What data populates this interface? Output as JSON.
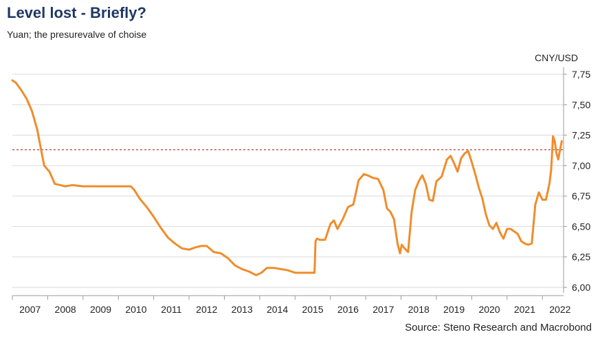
{
  "header": {
    "title": "Level lost - Briefly?",
    "subtitle": "Yuan; the presurevalve of choise",
    "unit": "CNY/USD"
  },
  "footer": {
    "source": "Source: Steno Research and Macrobond"
  },
  "colors": {
    "series": "#f08c2a",
    "reference": "#b22222",
    "grid": "#d9d9d9",
    "axis": "#999999"
  },
  "chart_data": {
    "type": "line",
    "title": "Level lost - Briefly?",
    "subtitle": "Yuan; the presurevalve of choise",
    "ylabel": "CNY/USD",
    "xlim": [
      2007.0,
      2022.6
    ],
    "ylim": [
      6.0,
      7.75
    ],
    "y_ticks": [
      "7,75",
      "7,50",
      "7,25",
      "7,00",
      "6,75",
      "6,50",
      "6,25",
      "6,00"
    ],
    "y_tick_values": [
      7.75,
      7.5,
      7.25,
      7.0,
      6.75,
      6.5,
      6.25,
      6.0
    ],
    "x_ticks": [
      "2007",
      "2008",
      "2009",
      "2010",
      "2011",
      "2012",
      "2013",
      "2014",
      "2015",
      "2016",
      "2017",
      "2018",
      "2019",
      "2020",
      "2021",
      "2022"
    ],
    "x_tick_values": [
      2007,
      2008,
      2009,
      2010,
      2011,
      2012,
      2013,
      2014,
      2015,
      2016,
      2017,
      2018,
      2019,
      2020,
      2021,
      2022
    ],
    "grid": true,
    "reference_line": 7.13,
    "series": [
      {
        "name": "",
        "x": [
          2007.0,
          2007.1,
          2007.25,
          2007.4,
          2007.55,
          2007.7,
          2007.8,
          2007.9,
          2008.05,
          2008.2,
          2008.35,
          2008.5,
          2008.7,
          2009.0,
          2009.3,
          2009.6,
          2009.9,
          2010.2,
          2010.35,
          2010.45,
          2010.6,
          2010.8,
          2011.0,
          2011.2,
          2011.4,
          2011.6,
          2011.8,
          2012.0,
          2012.2,
          2012.35,
          2012.5,
          2012.7,
          2012.9,
          2013.1,
          2013.3,
          2013.5,
          2013.7,
          2013.9,
          2014.05,
          2014.2,
          2014.4,
          2014.6,
          2014.8,
          2015.0,
          2015.2,
          2015.4,
          2015.55,
          2015.58,
          2015.62,
          2015.7,
          2015.85,
          2016.0,
          2016.1,
          2016.2,
          2016.35,
          2016.5,
          2016.65,
          2016.8,
          2016.95,
          2017.05,
          2017.2,
          2017.35,
          2017.5,
          2017.6,
          2017.7,
          2017.8,
          2017.9,
          2017.97,
          2018.02,
          2018.1,
          2018.2,
          2018.3,
          2018.4,
          2018.5,
          2018.6,
          2018.7,
          2018.8,
          2018.9,
          2019.0,
          2019.15,
          2019.3,
          2019.4,
          2019.5,
          2019.6,
          2019.7,
          2019.8,
          2019.9,
          2020.0,
          2020.1,
          2020.2,
          2020.3,
          2020.4,
          2020.5,
          2020.6,
          2020.7,
          2020.8,
          2020.9,
          2021.0,
          2021.1,
          2021.2,
          2021.3,
          2021.4,
          2021.5,
          2021.6,
          2021.7,
          2021.8,
          2021.9,
          2022.0,
          2022.1,
          2022.2,
          2022.25,
          2022.3,
          2022.35,
          2022.4,
          2022.45,
          2022.5,
          2022.55
        ],
        "y": [
          7.7,
          7.68,
          7.62,
          7.55,
          7.45,
          7.3,
          7.15,
          7.0,
          6.95,
          6.85,
          6.84,
          6.83,
          6.84,
          6.83,
          6.83,
          6.83,
          6.83,
          6.83,
          6.83,
          6.8,
          6.73,
          6.66,
          6.58,
          6.49,
          6.41,
          6.36,
          6.32,
          6.31,
          6.33,
          6.34,
          6.34,
          6.29,
          6.28,
          6.24,
          6.18,
          6.15,
          6.13,
          6.1,
          6.12,
          6.16,
          6.16,
          6.15,
          6.14,
          6.12,
          6.12,
          6.12,
          6.12,
          6.38,
          6.4,
          6.39,
          6.39,
          6.52,
          6.55,
          6.48,
          6.56,
          6.66,
          6.68,
          6.88,
          6.93,
          6.92,
          6.9,
          6.89,
          6.8,
          6.65,
          6.62,
          6.56,
          6.36,
          6.28,
          6.35,
          6.32,
          6.29,
          6.62,
          6.8,
          6.87,
          6.92,
          6.85,
          6.72,
          6.71,
          6.87,
          6.91,
          7.05,
          7.08,
          7.02,
          6.95,
          7.06,
          7.1,
          7.12,
          7.03,
          6.93,
          6.82,
          6.73,
          6.6,
          6.51,
          6.48,
          6.53,
          6.45,
          6.4,
          6.48,
          6.48,
          6.46,
          6.44,
          6.38,
          6.36,
          6.35,
          6.36,
          6.68,
          6.78,
          6.72,
          6.72,
          6.85,
          6.97,
          7.24,
          7.2,
          7.1,
          7.05,
          7.13,
          7.2
        ]
      }
    ]
  }
}
